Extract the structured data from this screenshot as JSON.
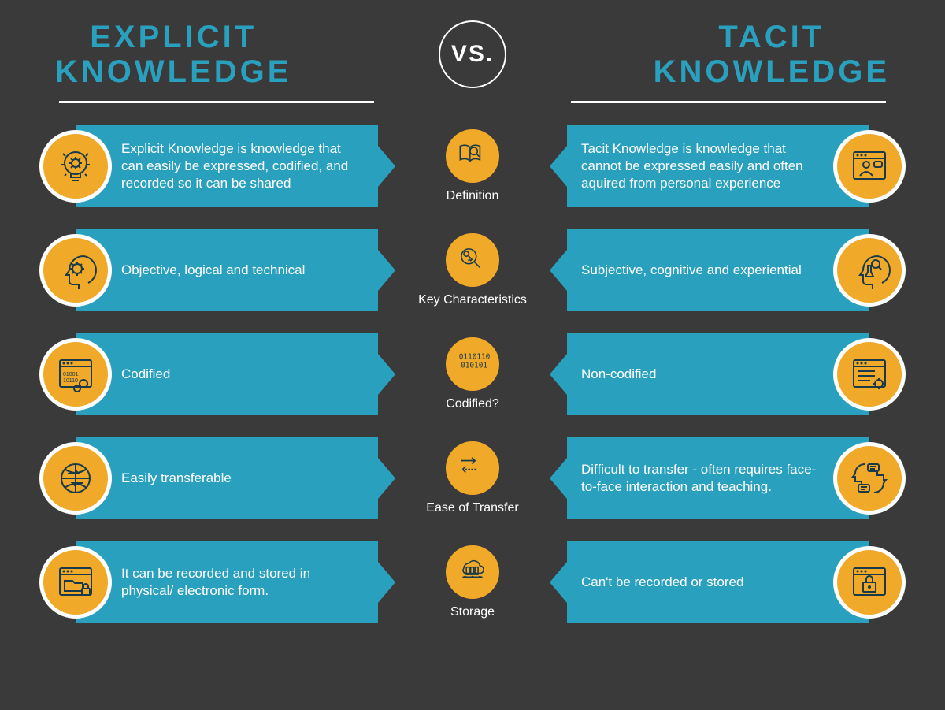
{
  "colors": {
    "background": "#3a3a3a",
    "accent": "#2aa0bf",
    "icon_bg": "#f0a928",
    "icon_stroke": "#1a3a4a",
    "text_light": "#ffffff"
  },
  "title_left": "EXPLICIT\nKNOWLEDGE",
  "title_right": "TACIT\nKNOWLEDGE",
  "vs_label": "VS.",
  "rows": [
    {
      "center_label": "Definition",
      "center_icon": "book-search",
      "left_icon": "lightbulb-gear",
      "left_text": "Explicit Knowledge is knowledge that can easily be expressed, codified, and recorded so it can be shared",
      "right_icon": "browser-teacher",
      "right_text": "Tacit Knowledge is knowledge that cannot be expressed easily and often aquired from personal experience"
    },
    {
      "center_label": "Key Characteristics",
      "center_icon": "key-magnify",
      "left_icon": "head-gear",
      "left_text": "Objective, logical and technical",
      "right_icon": "head-science",
      "right_text": "Subjective, cognitive and experiential"
    },
    {
      "center_label": "Codified?",
      "center_icon": "binary",
      "left_icon": "browser-binary-gears",
      "left_text": "Codified",
      "right_icon": "browser-lines-gear",
      "right_text": "Non-codified"
    },
    {
      "center_label": "Ease of Transfer",
      "center_icon": "arrows-bidir",
      "left_icon": "globe-arrows",
      "left_text": "Easily transferable",
      "right_icon": "heads-chat",
      "right_text": "Difficult to transfer - often requires face-to-face interaction and teaching."
    },
    {
      "center_label": "Storage",
      "center_icon": "cloud-server",
      "left_icon": "browser-folder-lock",
      "left_text": "It can be recorded and stored in physical/ electronic form.",
      "right_icon": "browser-lock",
      "right_text": "Can't be recorded or stored"
    }
  ]
}
